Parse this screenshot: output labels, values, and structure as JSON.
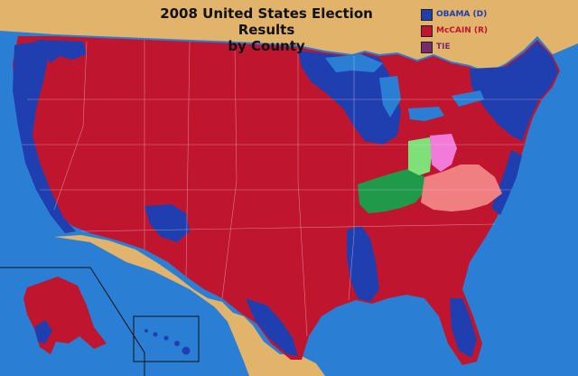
{
  "title": {
    "line1": "2008 United States Election Results",
    "line2": "by County"
  },
  "legend": {
    "items": [
      {
        "label": "OBAMA (D)",
        "color": "#1f3fb0",
        "text_color": "#1f3fb0"
      },
      {
        "label": "McCAIN (R)",
        "color": "#c0152f",
        "text_color": "#c0152f"
      },
      {
        "label": "TIE",
        "color": "#7a2a6e",
        "text_color": "#7a2a6e"
      }
    ]
  },
  "colors": {
    "ocean": "#2a7fd4",
    "land_outside": "#e2b36b",
    "democrat": "#1f3fb0",
    "republican": "#c0152f",
    "highlight_green_light": "#7fe07a",
    "highlight_green_dark": "#1f9a4a",
    "highlight_pink_light": "#f27ad8",
    "highlight_pink_dark": "#f07f82",
    "county_lines": "#f1d3d3"
  }
}
